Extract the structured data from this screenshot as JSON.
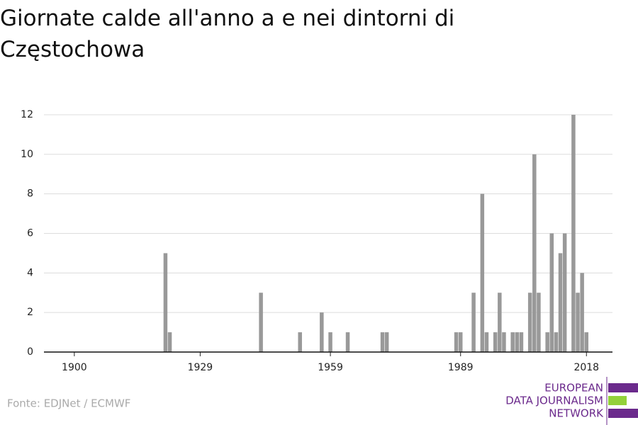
{
  "chart_data": {
    "type": "bar",
    "title": "Giornate calde all'anno a e nei dintorni di Częstochowa",
    "source": "Fonte: EDJNet / ECMWF",
    "x": [
      1921,
      1922,
      1943,
      1952,
      1957,
      1959,
      1963,
      1971,
      1972,
      1988,
      1989,
      1992,
      1994,
      1995,
      1997,
      1998,
      1999,
      2001,
      2002,
      2003,
      2005,
      2006,
      2007,
      2009,
      2010,
      2011,
      2012,
      2013,
      2015,
      2016,
      2017,
      2018
    ],
    "values": [
      5,
      1,
      3,
      1,
      2,
      1,
      1,
      1,
      1,
      1,
      1,
      3,
      8,
      1,
      1,
      3,
      1,
      1,
      1,
      1,
      3,
      10,
      3,
      1,
      6,
      1,
      5,
      6,
      12,
      3,
      4,
      1
    ],
    "color": "#999999",
    "xlim": [
      1893,
      2024
    ],
    "xticks": [
      1900,
      1929,
      1959,
      1989,
      2018
    ],
    "ylim": [
      0,
      12
    ],
    "yticks": [
      0,
      2,
      4,
      6,
      8,
      10,
      12
    ],
    "grid": true
  },
  "logo": {
    "lines": [
      "EUROPEAN",
      "DATA JOURNALISM",
      "NETWORK"
    ]
  }
}
